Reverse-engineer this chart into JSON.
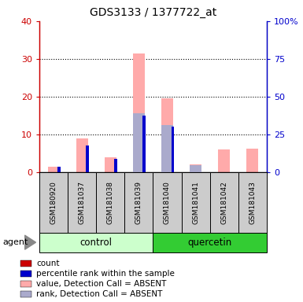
{
  "title": "GDS3133 / 1377722_at",
  "samples": [
    "GSM180920",
    "GSM181037",
    "GSM181038",
    "GSM181039",
    "GSM181040",
    "GSM181041",
    "GSM181042",
    "GSM181043"
  ],
  "absent_value": [
    1.5,
    9.0,
    4.0,
    31.5,
    19.5,
    2.0,
    6.0,
    6.2
  ],
  "absent_rank": [
    0.0,
    0.0,
    0.0,
    15.5,
    12.5,
    1.8,
    0.0,
    0.0
  ],
  "rank_values": [
    1.5,
    7.0,
    3.5,
    15.0,
    12.0,
    0.0,
    0.0,
    0.0
  ],
  "count_values": [
    0,
    0,
    0,
    0,
    0,
    0,
    0,
    0
  ],
  "yticks_left": [
    0,
    10,
    20,
    30,
    40
  ],
  "yticks_right": [
    0,
    25,
    50,
    75,
    100
  ],
  "color_count": "#cc0000",
  "color_rank": "#0000cc",
  "color_absent_value": "#ffaaaa",
  "color_absent_rank": "#aaaacc",
  "color_control_light": "#ccffcc",
  "color_quercetin_dark": "#33cc33",
  "color_sample_bg": "#cccccc",
  "legend_items": [
    {
      "label": "count",
      "color": "#cc0000"
    },
    {
      "label": "percentile rank within the sample",
      "color": "#0000cc"
    },
    {
      "label": "value, Detection Call = ABSENT",
      "color": "#ffaaaa"
    },
    {
      "label": "rank, Detection Call = ABSENT",
      "color": "#aaaacc"
    }
  ]
}
